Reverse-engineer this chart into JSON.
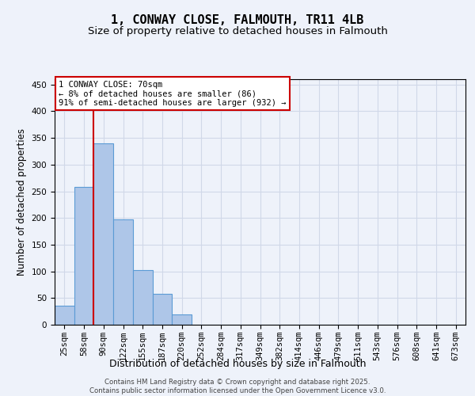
{
  "title": "1, CONWAY CLOSE, FALMOUTH, TR11 4LB",
  "subtitle": "Size of property relative to detached houses in Falmouth",
  "xlabel": "Distribution of detached houses by size in Falmouth",
  "ylabel": "Number of detached properties",
  "categories": [
    "25sqm",
    "58sqm",
    "90sqm",
    "122sqm",
    "155sqm",
    "187sqm",
    "220sqm",
    "252sqm",
    "284sqm",
    "317sqm",
    "349sqm",
    "382sqm",
    "414sqm",
    "446sqm",
    "479sqm",
    "511sqm",
    "543sqm",
    "576sqm",
    "608sqm",
    "641sqm",
    "673sqm"
  ],
  "values": [
    35,
    258,
    340,
    198,
    103,
    58,
    20,
    0,
    0,
    0,
    0,
    0,
    0,
    0,
    0,
    0,
    0,
    0,
    0,
    0,
    0
  ],
  "bar_color": "#aec6e8",
  "bar_edge_color": "#5b9bd5",
  "property_line_color": "#cc0000",
  "annotation_text": "1 CONWAY CLOSE: 70sqm\n← 8% of detached houses are smaller (86)\n91% of semi-detached houses are larger (932) →",
  "ylim": [
    0,
    460
  ],
  "yticks": [
    0,
    50,
    100,
    150,
    200,
    250,
    300,
    350,
    400,
    450
  ],
  "title_fontsize": 11,
  "subtitle_fontsize": 9.5,
  "xlabel_fontsize": 9,
  "ylabel_fontsize": 8.5,
  "tick_fontsize": 7.5,
  "annot_fontsize": 7.5,
  "footer_text": "Contains HM Land Registry data © Crown copyright and database right 2025.\nContains public sector information licensed under the Open Government Licence v3.0.",
  "background_color": "#eef2fa",
  "plot_bg_color": "#eef2fa",
  "grid_color": "#d0d8e8"
}
